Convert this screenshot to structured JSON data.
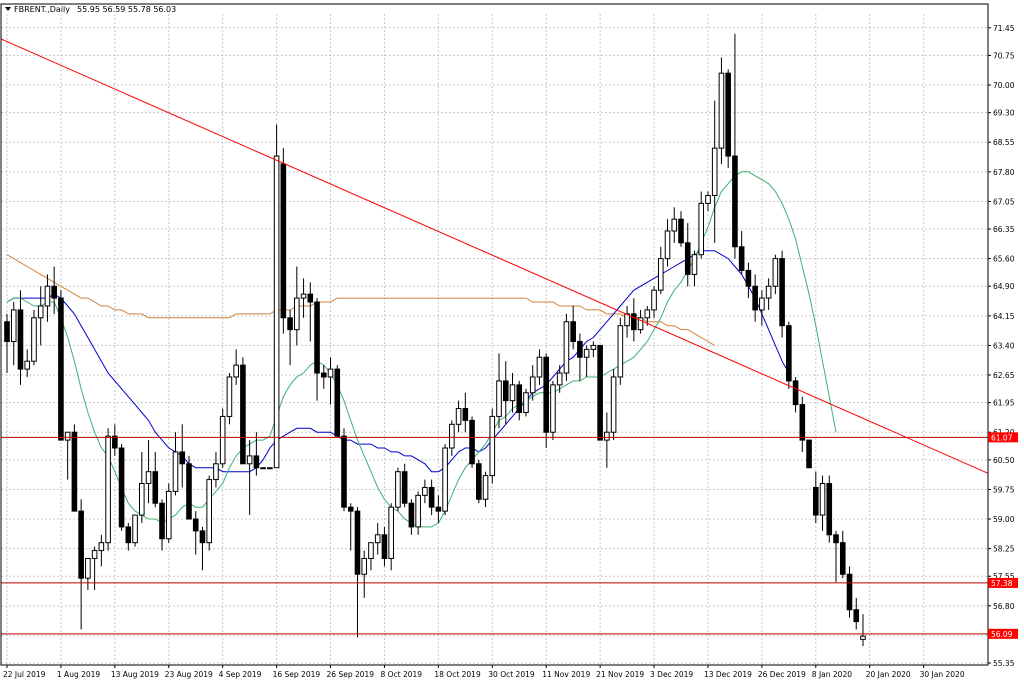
{
  "header": {
    "symbol_label": "FBRENT.,Daily",
    "ohlc_text": "55.95 56.59 55.78 56.03"
  },
  "colors": {
    "bull_candle": "#ffffff",
    "bear_candle": "#000000",
    "wick": "#000000",
    "grid": "#c8c8c8",
    "trendline": "#ff0000",
    "level_line": "#c00000",
    "ma_fast": "#3cb371",
    "ma_mid": "#0000cd",
    "ma_slow": "#d2813a",
    "price_tag_bg": "#ff0000",
    "price_tag_text": "#ffffff"
  },
  "chart_data": {
    "type": "candlestick",
    "title": "FBRENT.,Daily",
    "ylim": [
      55.3,
      71.8
    ],
    "y_ticks": [
      "71.45",
      "70.75",
      "70.00",
      "69.30",
      "68.55",
      "67.80",
      "67.05",
      "66.35",
      "65.60",
      "64.90",
      "64.15",
      "63.40",
      "62.65",
      "61.95",
      "61.20",
      "60.50",
      "59.75",
      "59.00",
      "58.25",
      "57.55",
      "56.80",
      "56.05",
      "55.35"
    ],
    "x_tick_labels": [
      "22 Jul 2019",
      "1 Aug 2019",
      "13 Aug 2019",
      "23 Aug 2019",
      "4 Sep 2019",
      "16 Sep 2019",
      "26 Sep 2019",
      "8 Oct 2019",
      "18 Oct 2019",
      "30 Oct 2019",
      "11 Nov 2019",
      "21 Nov 2019",
      "3 Dec 2019",
      "13 Dec 2019",
      "26 Dec 2019",
      "8 Jan 2020",
      "20 Jan 2020",
      "30 Jan 2020"
    ],
    "x_tick_index": [
      0,
      8,
      16,
      24,
      32,
      40,
      48,
      56,
      64,
      72,
      80,
      88,
      96,
      104,
      112,
      120,
      128,
      136
    ],
    "candles": [
      [
        64.0,
        64.2,
        62.7,
        63.5
      ],
      [
        63.5,
        64.5,
        62.9,
        64.3
      ],
      [
        64.3,
        64.8,
        62.4,
        62.8
      ],
      [
        62.8,
        63.3,
        62.6,
        63.0
      ],
      [
        63.0,
        64.3,
        62.9,
        64.1
      ],
      [
        64.1,
        64.9,
        63.4,
        64.4
      ],
      [
        64.4,
        65.2,
        64.0,
        64.9
      ],
      [
        64.9,
        65.4,
        64.2,
        64.6
      ],
      [
        64.6,
        64.8,
        61.0,
        61.0
      ],
      [
        61.0,
        61.2,
        60.0,
        61.2
      ],
      [
        61.2,
        61.4,
        59.2,
        59.2
      ],
      [
        59.2,
        59.5,
        56.2,
        57.5
      ],
      [
        57.5,
        58.0,
        57.2,
        58.0
      ],
      [
        58.0,
        58.3,
        57.2,
        58.2
      ],
      [
        58.2,
        58.6,
        57.8,
        58.4
      ],
      [
        58.4,
        61.3,
        58.2,
        61.1
      ],
      [
        61.1,
        61.4,
        60.6,
        60.8
      ],
      [
        60.8,
        60.9,
        58.7,
        58.8
      ],
      [
        58.8,
        58.9,
        58.2,
        58.4
      ],
      [
        58.4,
        59.1,
        58.3,
        59.1
      ],
      [
        59.1,
        60.7,
        58.9,
        59.9
      ],
      [
        59.9,
        61.0,
        59.4,
        60.2
      ],
      [
        60.2,
        60.7,
        59.3,
        59.4
      ],
      [
        59.4,
        59.5,
        58.2,
        58.5
      ],
      [
        58.5,
        59.9,
        58.4,
        59.7
      ],
      [
        59.7,
        61.2,
        59.6,
        60.7
      ],
      [
        60.7,
        61.4,
        59.8,
        60.4
      ],
      [
        60.4,
        60.6,
        59.0,
        59.0
      ],
      [
        59.0,
        59.2,
        58.1,
        58.7
      ],
      [
        58.7,
        58.8,
        57.7,
        58.4
      ],
      [
        58.4,
        60.1,
        58.2,
        60.0
      ],
      [
        60.0,
        60.7,
        59.8,
        60.4
      ],
      [
        60.4,
        61.8,
        60.3,
        61.6
      ],
      [
        61.6,
        62.7,
        61.4,
        62.6
      ],
      [
        62.6,
        63.3,
        62.4,
        62.9
      ],
      [
        62.9,
        63.1,
        60.4,
        60.4
      ],
      [
        60.4,
        61.0,
        59.1,
        60.6
      ],
      [
        60.6,
        61.2,
        60.1,
        60.3
      ],
      [
        60.3,
        60.3,
        60.3,
        60.3
      ],
      [
        60.3,
        60.3,
        60.3,
        60.3
      ],
      [
        60.3,
        69.0,
        60.3,
        68.2
      ],
      [
        68.0,
        68.4,
        63.7,
        64.1
      ],
      [
        64.1,
        64.3,
        62.9,
        63.8
      ],
      [
        63.8,
        65.4,
        63.4,
        64.6
      ],
      [
        64.6,
        65.1,
        64.1,
        64.7
      ],
      [
        64.7,
        65.0,
        63.5,
        64.5
      ],
      [
        64.5,
        64.6,
        62.0,
        62.7
      ],
      [
        62.7,
        62.9,
        62.3,
        62.6
      ],
      [
        62.6,
        63.1,
        61.9,
        62.8
      ],
      [
        62.8,
        62.9,
        61.1,
        61.1
      ],
      [
        61.1,
        61.3,
        59.2,
        59.3
      ],
      [
        59.3,
        59.4,
        58.2,
        59.2
      ],
      [
        59.2,
        59.3,
        56.0,
        57.6
      ],
      [
        57.6,
        58.2,
        57.0,
        58.0
      ],
      [
        58.0,
        58.4,
        57.7,
        58.4
      ],
      [
        58.4,
        58.9,
        58.1,
        58.6
      ],
      [
        58.6,
        58.8,
        57.8,
        58.0
      ],
      [
        58.0,
        59.4,
        57.7,
        59.3
      ],
      [
        59.3,
        60.3,
        59.2,
        60.2
      ],
      [
        60.2,
        60.4,
        59.3,
        59.4
      ],
      [
        59.4,
        59.5,
        58.6,
        58.8
      ],
      [
        58.8,
        59.7,
        58.6,
        59.6
      ],
      [
        59.6,
        60.0,
        59.4,
        59.8
      ],
      [
        59.8,
        60.0,
        59.1,
        59.3
      ],
      [
        59.3,
        59.6,
        58.9,
        59.2
      ],
      [
        59.2,
        60.9,
        59.1,
        60.8
      ],
      [
        60.8,
        61.5,
        60.6,
        61.4
      ],
      [
        61.4,
        62.0,
        61.2,
        61.8
      ],
      [
        61.8,
        62.2,
        61.2,
        61.5
      ],
      [
        61.5,
        61.6,
        60.3,
        60.4
      ],
      [
        60.4,
        60.5,
        59.4,
        59.5
      ],
      [
        59.5,
        60.2,
        59.3,
        60.1
      ],
      [
        60.1,
        61.8,
        59.9,
        61.6
      ],
      [
        61.6,
        63.2,
        61.3,
        62.5
      ],
      [
        62.5,
        63.0,
        61.4,
        62.0
      ],
      [
        62.0,
        62.7,
        61.7,
        62.4
      ],
      [
        62.4,
        62.5,
        61.5,
        61.7
      ],
      [
        61.7,
        62.3,
        61.6,
        62.2
      ],
      [
        62.2,
        62.9,
        62.0,
        62.6
      ],
      [
        62.6,
        63.3,
        62.4,
        63.1
      ],
      [
        63.1,
        63.2,
        60.8,
        61.2
      ],
      [
        61.2,
        62.5,
        61.0,
        62.4
      ],
      [
        62.4,
        62.9,
        62.2,
        62.7
      ],
      [
        62.7,
        64.2,
        62.5,
        64.0
      ],
      [
        64.0,
        64.4,
        63.3,
        63.5
      ],
      [
        63.5,
        63.7,
        62.5,
        63.1
      ],
      [
        63.1,
        63.4,
        62.6,
        63.3
      ],
      [
        63.3,
        63.5,
        63.1,
        63.4
      ],
      [
        63.4,
        63.4,
        61.0,
        61.0
      ],
      [
        61.0,
        61.7,
        60.3,
        61.2
      ],
      [
        61.2,
        62.8,
        61.0,
        62.6
      ],
      [
        62.6,
        64.1,
        62.4,
        63.9
      ],
      [
        63.9,
        64.4,
        63.6,
        64.2
      ],
      [
        64.2,
        64.6,
        63.5,
        63.8
      ],
      [
        63.8,
        64.3,
        63.7,
        64.1
      ],
      [
        64.1,
        64.4,
        63.9,
        64.3
      ],
      [
        64.3,
        64.9,
        64.1,
        64.8
      ],
      [
        64.8,
        65.9,
        64.7,
        65.6
      ],
      [
        65.6,
        66.6,
        65.4,
        66.3
      ],
      [
        66.3,
        66.9,
        66.0,
        66.6
      ],
      [
        66.6,
        66.8,
        65.9,
        66.0
      ],
      [
        66.0,
        66.5,
        64.9,
        65.2
      ],
      [
        65.2,
        65.8,
        64.9,
        65.7
      ],
      [
        65.7,
        67.3,
        65.6,
        67.0
      ],
      [
        67.0,
        67.3,
        66.8,
        67.2
      ],
      [
        67.2,
        69.6,
        66.0,
        68.4
      ],
      [
        68.4,
        70.7,
        68.0,
        70.3
      ],
      [
        70.3,
        70.4,
        67.9,
        68.2
      ],
      [
        68.2,
        71.3,
        65.6,
        65.9
      ],
      [
        65.9,
        66.3,
        65.2,
        65.3
      ],
      [
        65.3,
        65.5,
        64.6,
        64.9
      ],
      [
        64.9,
        65.2,
        64.0,
        64.3
      ],
      [
        64.3,
        64.8,
        63.9,
        64.6
      ],
      [
        64.6,
        65.1,
        64.3,
        64.9
      ],
      [
        64.9,
        65.7,
        64.7,
        65.6
      ],
      [
        65.6,
        65.8,
        63.6,
        63.9
      ],
      [
        63.9,
        64.0,
        62.3,
        62.5
      ],
      [
        62.5,
        62.6,
        61.7,
        61.9
      ],
      [
        61.9,
        62.1,
        60.7,
        61.0
      ],
      [
        61.0,
        60.9,
        60.3,
        60.3
      ],
      [
        59.8,
        60.2,
        58.9,
        59.1
      ],
      [
        59.1,
        60.1,
        58.7,
        59.9
      ],
      [
        59.9,
        60.1,
        58.4,
        58.6
      ],
      [
        58.6,
        58.7,
        57.4,
        58.4
      ],
      [
        58.4,
        58.7,
        57.5,
        57.6
      ],
      [
        57.6,
        57.8,
        56.5,
        56.7
      ],
      [
        56.7,
        57.0,
        56.2,
        56.4
      ],
      [
        55.95,
        56.59,
        55.78,
        56.03
      ]
    ],
    "ma_fast": [
      64.5,
      64.6,
      64.6,
      64.5,
      64.4,
      64.4,
      64.5,
      64.5,
      64.1,
      63.6,
      63.0,
      62.3,
      61.7,
      61.2,
      60.8,
      60.6,
      60.2,
      59.8,
      59.4,
      59.2,
      59.1,
      59.0,
      59.0,
      58.9,
      59.0,
      59.1,
      59.3,
      59.4,
      59.3,
      59.3,
      59.5,
      59.7,
      59.9,
      60.3,
      60.6,
      60.8,
      60.9,
      61.0,
      61.0,
      61.1,
      61.6,
      62.1,
      62.4,
      62.6,
      62.7,
      62.9,
      63.0,
      62.9,
      62.7,
      62.4,
      62.0,
      61.5,
      61.0,
      60.6,
      60.2,
      59.8,
      59.5,
      59.3,
      59.2,
      59.0,
      58.9,
      58.8,
      58.8,
      58.8,
      58.9,
      59.2,
      59.6,
      60.0,
      60.3,
      60.5,
      60.7,
      60.9,
      61.2,
      61.5,
      61.6,
      61.8,
      61.9,
      62.0,
      62.1,
      62.2,
      62.2,
      62.2,
      62.3,
      62.4,
      62.5,
      62.5,
      62.6,
      62.6,
      62.6,
      62.7,
      62.8,
      62.9,
      63.0,
      63.1,
      63.3,
      63.5,
      63.8,
      64.1,
      64.5,
      64.8,
      65.0,
      65.3,
      65.6,
      66.0,
      66.4,
      66.9,
      67.3,
      67.5,
      67.7,
      67.8,
      67.8,
      67.7,
      67.6,
      67.5,
      67.3,
      67.0,
      66.6,
      66.1,
      65.4,
      64.7,
      63.9,
      63.0,
      62.1,
      61.2
    ],
    "ma_mid": [
      64.5,
      64.6,
      64.6,
      64.6,
      64.6,
      64.6,
      64.6,
      64.7,
      64.6,
      64.4,
      64.2,
      63.9,
      63.6,
      63.3,
      63.0,
      62.7,
      62.5,
      62.3,
      62.1,
      61.9,
      61.7,
      61.5,
      61.2,
      61.0,
      60.8,
      60.7,
      60.6,
      60.4,
      60.3,
      60.3,
      60.3,
      60.3,
      60.2,
      60.2,
      60.2,
      60.2,
      60.2,
      60.3,
      60.5,
      60.8,
      61.0,
      61.1,
      61.2,
      61.3,
      61.3,
      61.3,
      61.2,
      61.2,
      61.2,
      61.1,
      61.0,
      61.0,
      60.9,
      60.9,
      60.9,
      60.8,
      60.8,
      60.7,
      60.7,
      60.6,
      60.6,
      60.5,
      60.4,
      60.2,
      60.2,
      60.3,
      60.5,
      60.7,
      60.8,
      60.8,
      60.7,
      60.8,
      61.0,
      61.2,
      61.4,
      61.6,
      61.8,
      62.0,
      62.2,
      62.3,
      62.4,
      62.6,
      62.8,
      63.0,
      63.1,
      63.3,
      63.5,
      63.6,
      63.8,
      64.0,
      64.2,
      64.4,
      64.6,
      64.8,
      64.9,
      65.0,
      65.1,
      65.2,
      65.3,
      65.4,
      65.5,
      65.6,
      65.7,
      65.8,
      65.8,
      65.8,
      65.7,
      65.6,
      65.4,
      65.2,
      64.9,
      64.6,
      64.2,
      63.8,
      63.4,
      63.0,
      62.7
    ],
    "ma_slow": [
      65.7,
      65.6,
      65.5,
      65.4,
      65.3,
      65.2,
      65.1,
      65.0,
      64.9,
      64.8,
      64.7,
      64.6,
      64.6,
      64.5,
      64.4,
      64.4,
      64.3,
      64.3,
      64.2,
      64.2,
      64.2,
      64.1,
      64.1,
      64.1,
      64.1,
      64.1,
      64.1,
      64.1,
      64.1,
      64.1,
      64.1,
      64.1,
      64.1,
      64.1,
      64.2,
      64.2,
      64.2,
      64.2,
      64.2,
      64.2,
      64.3,
      64.3,
      64.3,
      64.4,
      64.4,
      64.4,
      64.5,
      64.5,
      64.5,
      64.6,
      64.6,
      64.6,
      64.6,
      64.6,
      64.6,
      64.6,
      64.6,
      64.6,
      64.6,
      64.6,
      64.6,
      64.6,
      64.6,
      64.6,
      64.6,
      64.6,
      64.6,
      64.6,
      64.6,
      64.6,
      64.6,
      64.6,
      64.6,
      64.6,
      64.6,
      64.6,
      64.6,
      64.6,
      64.5,
      64.5,
      64.5,
      64.5,
      64.4,
      64.4,
      64.4,
      64.4,
      64.3,
      64.3,
      64.3,
      64.2,
      64.2,
      64.2,
      64.1,
      64.1,
      64.1,
      64.0,
      64.0,
      64.0,
      63.9,
      63.9,
      63.8,
      63.8,
      63.7,
      63.6,
      63.5,
      63.4
    ],
    "trendline": {
      "start": [
        0,
        71.1
      ],
      "end": [
        141,
        60.5
      ]
    },
    "horizontal_levels": [
      "61.07",
      "57.38",
      "56.09"
    ],
    "grid": true
  }
}
